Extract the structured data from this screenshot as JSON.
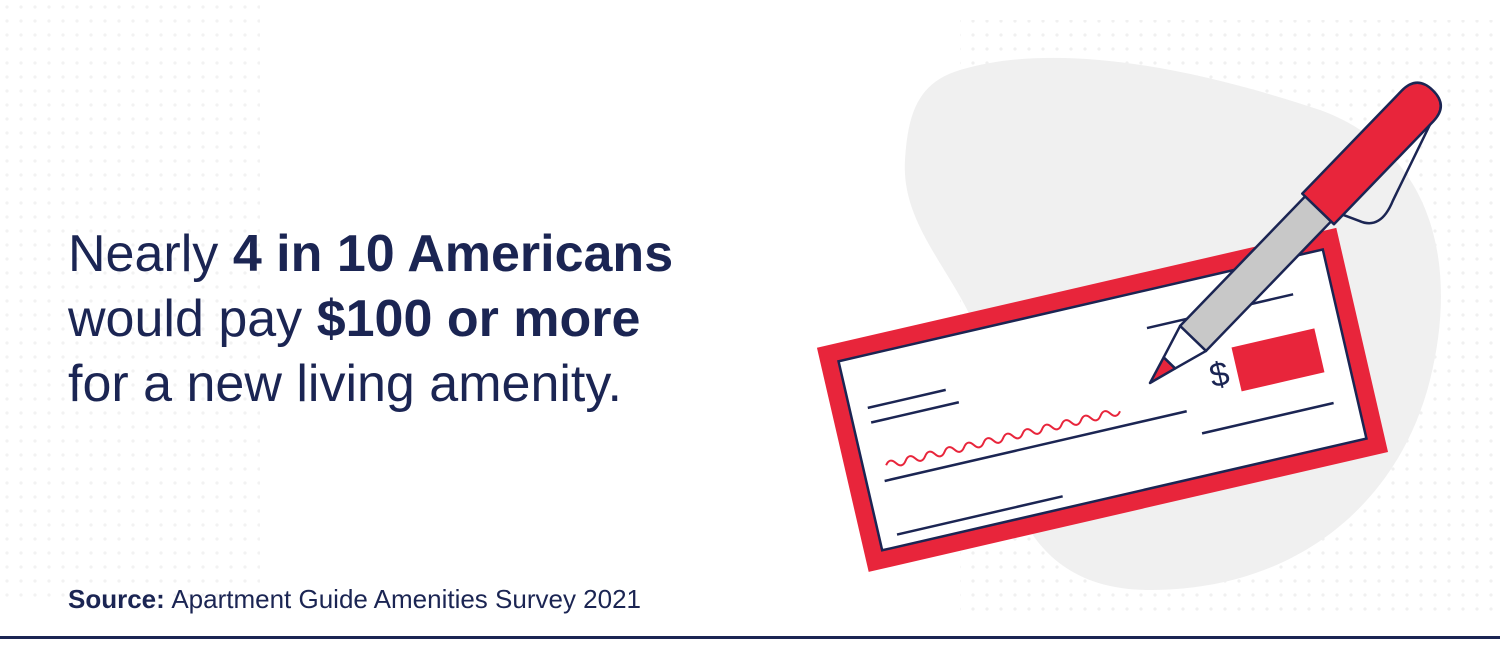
{
  "headline": {
    "lines": [
      [
        {
          "text": "Nearly",
          "bold": false
        },
        {
          "text": "4 in 10 Americans",
          "bold": true
        }
      ],
      [
        {
          "text": "would pay",
          "bold": false
        },
        {
          "text": "$100 or more",
          "bold": true
        }
      ],
      [
        {
          "text": "for a new living amenity.",
          "bold": false
        }
      ]
    ]
  },
  "source": {
    "label": "Source:",
    "text": "Apartment Guide Amenities Survey 2021"
  },
  "check": {
    "currency": "$"
  }
}
